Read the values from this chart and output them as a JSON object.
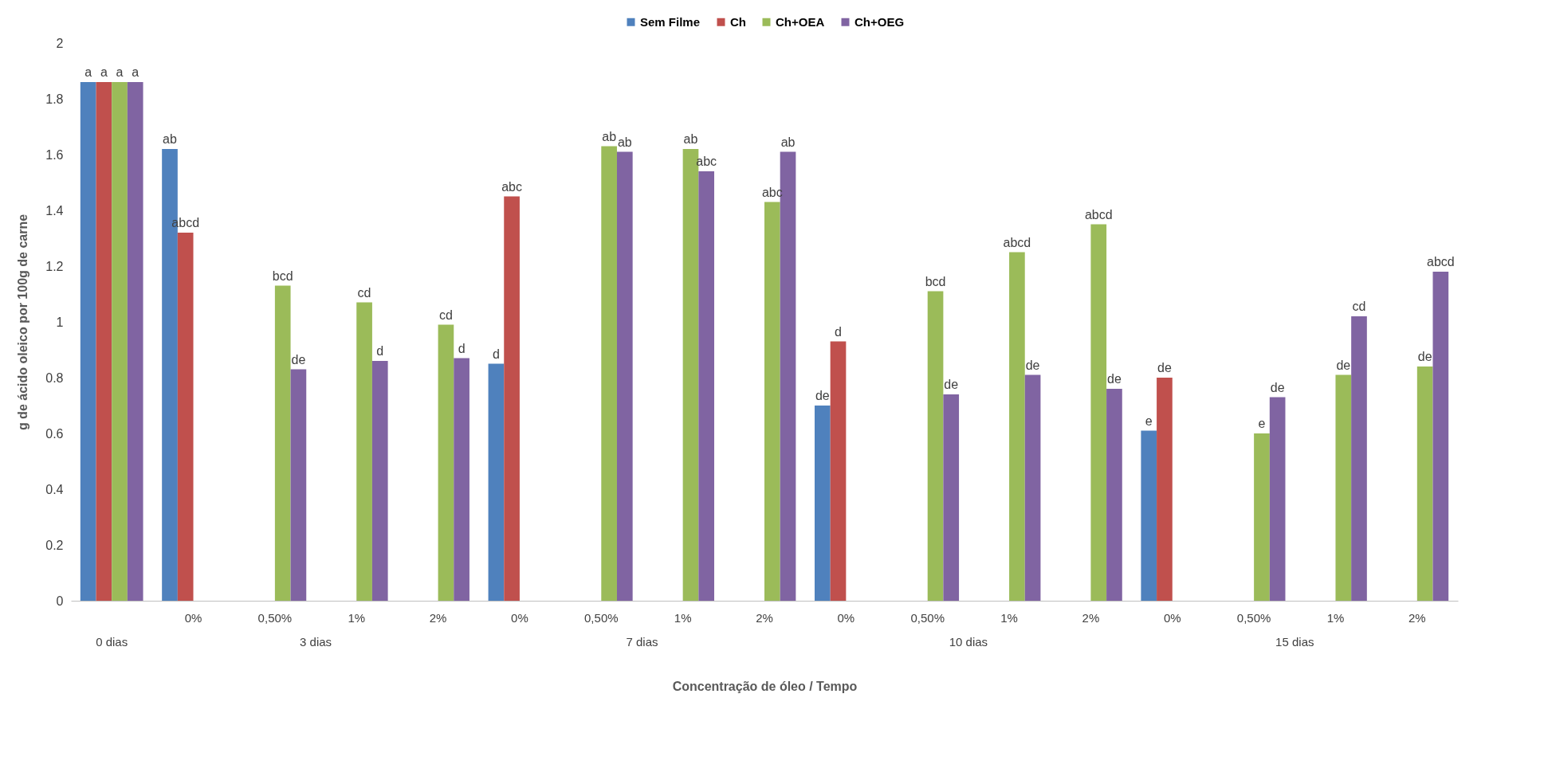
{
  "chart_data": {
    "type": "bar",
    "xlabel": "Concentração de óleo / Tempo",
    "ylabel": "g de ácido oleico por 100g de carne",
    "categories": [
      null,
      "0%",
      "0,50%",
      "1%",
      "2%",
      "0%",
      "0,50%",
      "1%",
      "2%",
      "0%",
      "0,50%",
      "1%",
      "2%",
      "0%",
      "0,50%",
      "1%",
      "2%"
    ],
    "annotations": [
      "0 dias",
      "3 dias",
      "7 dias",
      "10 dias",
      "15 dias"
    ],
    "series": [
      {
        "name": "Sem Filme",
        "color": "#4f81bd",
        "values": [
          1.86,
          1.62,
          null,
          null,
          null,
          0.85,
          null,
          null,
          null,
          0.7,
          null,
          null,
          null,
          0.61,
          null,
          null,
          null
        ],
        "value_labels": [
          "a",
          "ab",
          null,
          null,
          null,
          "d",
          null,
          null,
          null,
          "de",
          null,
          null,
          null,
          "e",
          null,
          null,
          null
        ]
      },
      {
        "name": "Ch",
        "color": "#c0504d",
        "values": [
          1.86,
          1.32,
          null,
          null,
          null,
          1.45,
          null,
          null,
          null,
          0.93,
          null,
          null,
          null,
          0.8,
          null,
          null,
          null
        ],
        "value_labels": [
          "a",
          "abcd",
          null,
          null,
          null,
          "abc",
          null,
          null,
          null,
          "d",
          null,
          null,
          null,
          "de",
          null,
          null,
          null
        ]
      },
      {
        "name": "Ch+OEA",
        "color": "#9bbb59",
        "values": [
          1.86,
          null,
          1.13,
          1.07,
          0.99,
          null,
          1.63,
          1.62,
          1.43,
          null,
          1.11,
          1.25,
          1.35,
          null,
          0.6,
          0.81,
          0.84
        ],
        "value_labels": [
          "a",
          null,
          "bcd",
          "cd",
          "cd",
          null,
          "ab",
          "ab",
          "abc",
          null,
          "bcd",
          "abcd",
          "abcd",
          null,
          "e",
          "de",
          "de"
        ]
      },
      {
        "name": "Ch+OEG",
        "color": "#8064a2",
        "values": [
          1.86,
          null,
          0.83,
          0.86,
          0.87,
          null,
          1.61,
          1.54,
          1.61,
          null,
          0.74,
          0.81,
          0.76,
          null,
          0.73,
          1.02,
          1.18
        ],
        "value_labels": [
          "a",
          null,
          "de",
          "d",
          "d",
          null,
          "ab",
          "abc",
          "ab",
          null,
          "de",
          "de",
          "de",
          null,
          "de",
          "cd",
          "abcd"
        ]
      }
    ],
    "ylim": [
      0,
      2
    ],
    "yticks": [
      0,
      0.2,
      0.4,
      0.6,
      0.8,
      1,
      1.2,
      1.4,
      1.6,
      1.8,
      2
    ],
    "legend": "top",
    "grid": false
  }
}
